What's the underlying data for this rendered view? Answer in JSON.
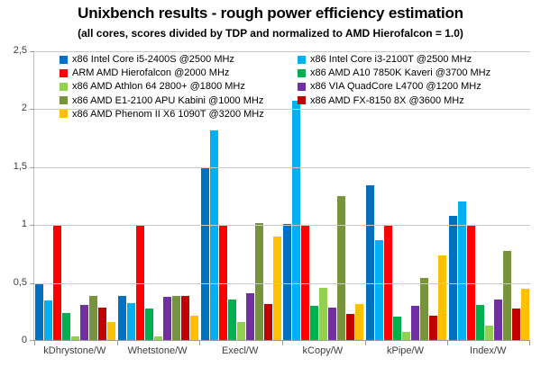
{
  "title": "Unixbench results - rough power efficiency estimation",
  "subtitle": "(all cores, scores divided by TDP and normalized to AMD Hierofalcon = 1.0)",
  "chart_data": {
    "type": "bar",
    "title": "Unixbench results - rough power efficiency estimation",
    "subtitle": "(all cores, scores divided by TDP and normalized to AMD Hierofalcon = 1.0)",
    "categories": [
      "kDhrystone/W",
      "Whetstone/W",
      "Execl/W",
      "kCopy/W",
      "kPipe/W",
      "Index/W"
    ],
    "series": [
      {
        "name": "x86 Intel Core i5-2400S @2500 MHz",
        "color": "#0070C0",
        "values": [
          0.5,
          0.39,
          1.5,
          1.01,
          1.34,
          1.08
        ]
      },
      {
        "name": "x86 Intel Core i3-2100T @2500 MHz",
        "color": "#00B0F0",
        "values": [
          0.35,
          0.33,
          1.82,
          2.07,
          0.87,
          1.2
        ]
      },
      {
        "name": "ARM AMD Hierofalcon @2000 MHz",
        "color": "#FF0000",
        "values": [
          1.0,
          1.0,
          1.0,
          1.0,
          1.0,
          1.0
        ]
      },
      {
        "name": "x86 AMD A10 7850K Kaveri @3700 MHz",
        "color": "#00B050",
        "values": [
          0.24,
          0.28,
          0.36,
          0.3,
          0.21,
          0.31
        ]
      },
      {
        "name": "x86 AMD Athlon 64 2800+ @1800 MHz",
        "color": "#92D050",
        "values": [
          0.04,
          0.04,
          0.16,
          0.46,
          0.08,
          0.13
        ]
      },
      {
        "name": "x86 VIA QuadCore L4700 @1200 MHz",
        "color": "#7030A0",
        "values": [
          0.31,
          0.38,
          0.41,
          0.29,
          0.3,
          0.36
        ]
      },
      {
        "name": "x86 AMD E1-2100 APU Kabini @1000 MHz",
        "color": "#77933C",
        "values": [
          0.39,
          0.39,
          1.02,
          1.25,
          0.54,
          0.78
        ]
      },
      {
        "name": "x86 AMD FX-8150 8X @3600 MHz",
        "color": "#C00000",
        "values": [
          0.29,
          0.39,
          0.32,
          0.23,
          0.22,
          0.28
        ]
      },
      {
        "name": "x86 AMD Phenom II X6 1090T @3200 MHz",
        "color": "#FFC000",
        "values": [
          0.16,
          0.22,
          0.9,
          0.32,
          0.74,
          0.45
        ]
      }
    ],
    "ylim": [
      0,
      2.5
    ],
    "y_ticks": [
      {
        "value": 0,
        "label": "0"
      },
      {
        "value": 0.5,
        "label": "0,5"
      },
      {
        "value": 1,
        "label": "1"
      },
      {
        "value": 1.5,
        "label": "1,5"
      },
      {
        "value": 2,
        "label": "2"
      },
      {
        "value": 2.5,
        "label": "2,5"
      }
    ],
    "grid": true,
    "legend_position": "top-inside",
    "legend_columns": [
      [
        0,
        2,
        4,
        6,
        8
      ],
      [
        1,
        3,
        5,
        7
      ]
    ]
  },
  "style": {
    "gridline_color": "#C9C9C9",
    "axis_color": "#9A9A9A",
    "text_color": "#000000",
    "tick_label_color": "#3C3C3C",
    "background": "#FFFFFF"
  }
}
